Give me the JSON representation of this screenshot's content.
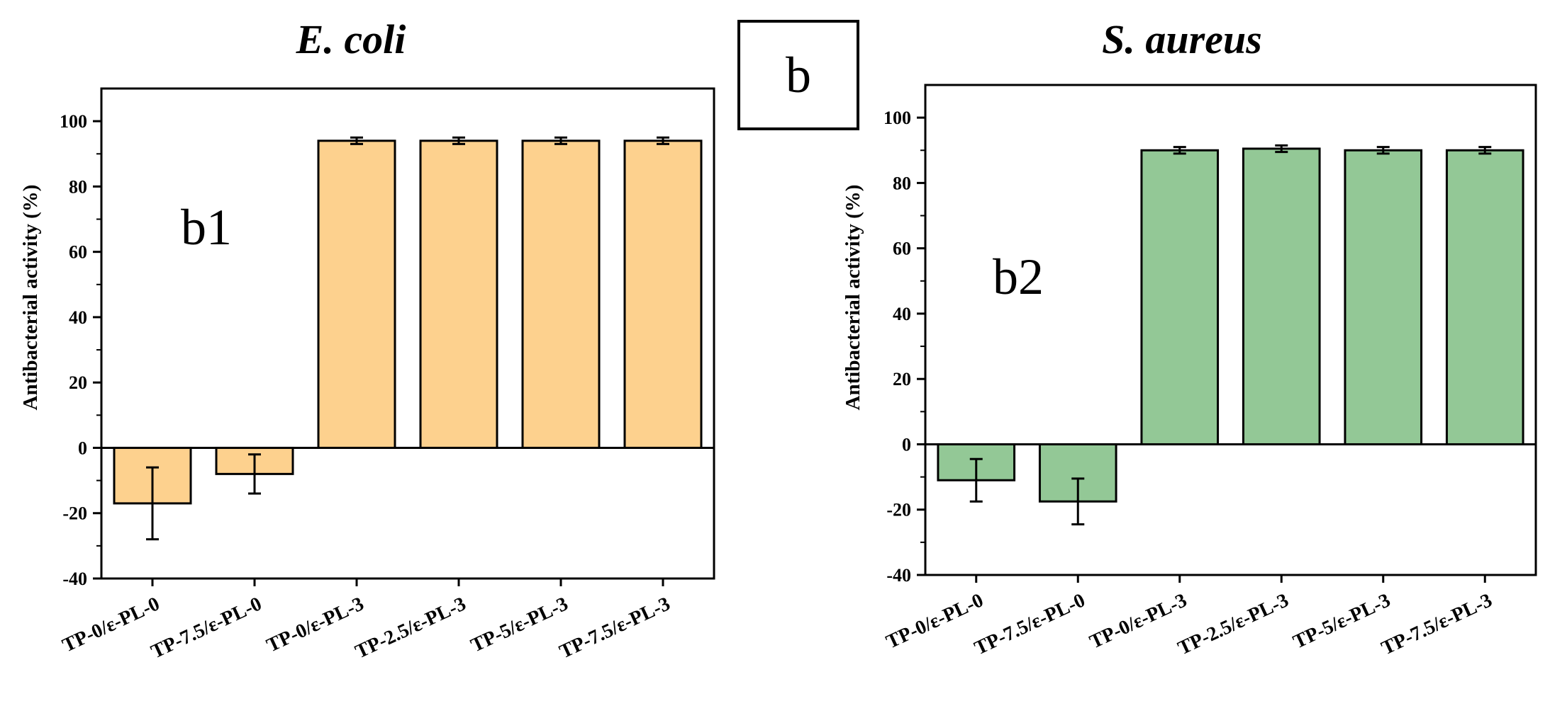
{
  "figure": {
    "panel_label": "b"
  },
  "chart_data": [
    {
      "type": "bar",
      "title": "E. coli",
      "panel_label": "b1",
      "xlabel": "",
      "ylabel": "Antibacterial activity (%)",
      "categories": [
        "TP-0/ε-PL-0",
        "TP-7.5/ε-PL-0",
        "TP-0/ε-PL-3",
        "TP-2.5/ε-PL-3",
        "TP-5/ε-PL-3",
        "TP-7.5/ε-PL-3"
      ],
      "values": [
        -17,
        -8,
        94,
        94,
        94,
        94
      ],
      "errors": [
        11,
        6,
        1,
        1,
        1,
        1
      ],
      "ylim": [
        -40,
        110
      ],
      "yticks": [
        -40,
        -20,
        0,
        20,
        40,
        60,
        80,
        100
      ],
      "color": "#fdd18e"
    },
    {
      "type": "bar",
      "title": "S. aureus",
      "panel_label": "b2",
      "xlabel": "",
      "ylabel": "Antibacterial activity (%)",
      "categories": [
        "TP-0/ε-PL-0",
        "TP-7.5/ε-PL-0",
        "TP-0/ε-PL-3",
        "TP-2.5/ε-PL-3",
        "TP-5/ε-PL-3",
        "TP-7.5/ε-PL-3"
      ],
      "values": [
        -11,
        -17.5,
        90,
        90.5,
        90,
        90
      ],
      "errors": [
        6.5,
        7,
        1,
        1,
        1,
        1
      ],
      "ylim": [
        -40,
        110
      ],
      "yticks": [
        -40,
        -20,
        0,
        20,
        40,
        60,
        80,
        100
      ],
      "color": "#93c896"
    }
  ]
}
